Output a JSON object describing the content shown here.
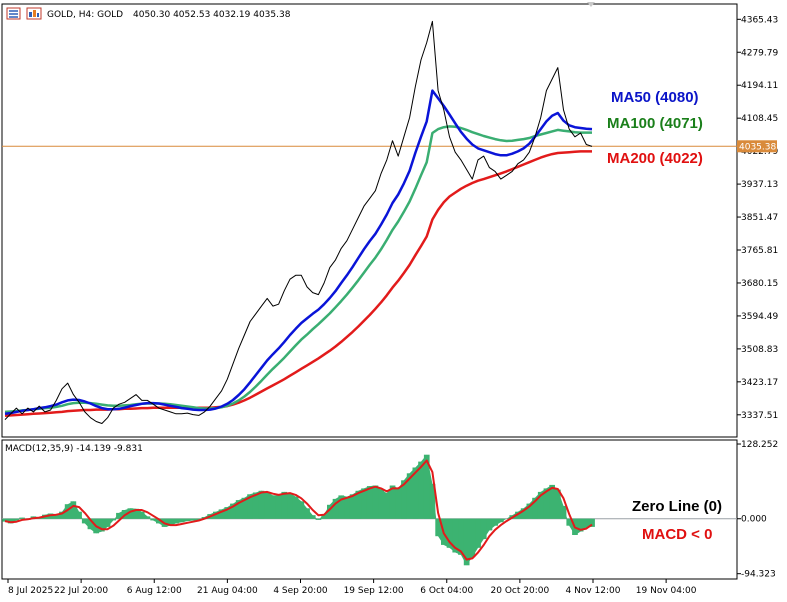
{
  "window": {
    "symbol_header": "GOLD, H4:  GOLD",
    "ohlc": "4050.30 4052.53 4032.19 4035.38",
    "macd_header": "MACD(12,35,9) -14.139 -9.831",
    "current_price_label": "4035.38"
  },
  "annotations": {
    "ma50": "MA50 (4080)",
    "ma100": "MA100 (4071)",
    "ma200": "MA200 (4022)",
    "zero_line": "Zero Line (0)",
    "macd_lt0": "MACD < 0"
  },
  "colors": {
    "price": "#000000",
    "ma50": "#0a14d8",
    "ma100": "#3aae72",
    "ma200": "#e21b1b",
    "histogram": "#3cb371",
    "signal": "#e21b1b",
    "price_line": "#d98a3a",
    "zero_line": "#9aa0a6",
    "ann_ma50": "#0a14c8",
    "ann_ma100": "#1a7f1a",
    "ann_ma200": "#e01010",
    "ann_macd": "#e01010",
    "ann_zero": "#000000"
  },
  "chart_data": [
    {
      "type": "line",
      "panel": "price",
      "ylim": [
        3285,
        4400
      ],
      "current_price": 4035.38,
      "y_ticks": [
        "4365.43",
        "4279.79",
        "4194.11",
        "4108.45",
        "4022.79",
        "3937.13",
        "3851.47",
        "3765.81",
        "3680.15",
        "3594.49",
        "3508.83",
        "3423.17",
        "3337.51"
      ],
      "x_ticks": [
        "8 Jul 2025",
        "22 Jul 20:00",
        "6 Aug 12:00",
        "21 Aug 04:00",
        "4 Sep 20:00",
        "19 Sep 12:00",
        "6 Oct 04:00",
        "20 Oct 20:00",
        "4 Nov 12:00",
        "19 Nov 04:00"
      ],
      "x_tick_index": [
        0,
        12.5,
        25,
        37.5,
        50,
        62.5,
        75,
        87.5,
        100,
        112.5
      ],
      "series": [
        {
          "key": "price",
          "values": [
            3325,
            3340,
            3355,
            3340,
            3355,
            3345,
            3360,
            3345,
            3350,
            3375,
            3405,
            3420,
            3390,
            3370,
            3345,
            3330,
            3320,
            3315,
            3330,
            3355,
            3365,
            3370,
            3380,
            3390,
            3375,
            3375,
            3365,
            3355,
            3350,
            3345,
            3340,
            3340,
            3342,
            3338,
            3336,
            3345,
            3360,
            3380,
            3400,
            3430,
            3470,
            3510,
            3545,
            3580,
            3600,
            3620,
            3640,
            3620,
            3625,
            3660,
            3690,
            3700,
            3700,
            3670,
            3655,
            3650,
            3680,
            3720,
            3740,
            3770,
            3790,
            3820,
            3850,
            3880,
            3900,
            3920,
            3965,
            4000,
            4050,
            4010,
            4060,
            4110,
            4190,
            4260,
            4305,
            4360,
            4180,
            4130,
            4060,
            4020,
            4000,
            3975,
            3950,
            4000,
            4010,
            3980,
            3970,
            3950,
            3960,
            3970,
            3990,
            4000,
            4020,
            4060,
            4110,
            4180,
            4210,
            4240,
            4130,
            4080,
            4060,
            4070,
            4040,
            4035
          ]
        },
        {
          "key": "ma50",
          "values": [
            3340,
            3342,
            3345,
            3348,
            3350,
            3352,
            3355,
            3357,
            3360,
            3364,
            3370,
            3375,
            3377,
            3376,
            3372,
            3367,
            3360,
            3355,
            3352,
            3352,
            3353,
            3356,
            3360,
            3363,
            3366,
            3368,
            3368,
            3367,
            3364,
            3361,
            3358,
            3355,
            3353,
            3351,
            3350,
            3350,
            3351,
            3354,
            3359,
            3366,
            3376,
            3389,
            3404,
            3422,
            3441,
            3460,
            3479,
            3495,
            3510,
            3527,
            3545,
            3561,
            3576,
            3588,
            3600,
            3611,
            3625,
            3641,
            3659,
            3680,
            3700,
            3722,
            3745,
            3768,
            3789,
            3808,
            3832,
            3858,
            3888,
            3910,
            3939,
            3972,
            4018,
            4060,
            4100,
            4180,
            4160,
            4140,
            4118,
            4095,
            4073,
            4055,
            4040,
            4030,
            4025,
            4020,
            4015,
            4012,
            4012,
            4016,
            4022,
            4030,
            4042,
            4060,
            4080,
            4100,
            4115,
            4122,
            4102,
            4090,
            4085,
            4083,
            4081,
            4080
          ]
        },
        {
          "key": "ma100",
          "values": [
            3345,
            3346,
            3347,
            3349,
            3350,
            3352,
            3353,
            3355,
            3356,
            3358,
            3361,
            3365,
            3368,
            3369,
            3369,
            3368,
            3366,
            3364,
            3362,
            3361,
            3361,
            3362,
            3363,
            3365,
            3366,
            3367,
            3367,
            3367,
            3366,
            3365,
            3363,
            3361,
            3359,
            3357,
            3355,
            3354,
            3354,
            3355,
            3357,
            3361,
            3367,
            3375,
            3385,
            3397,
            3411,
            3426,
            3442,
            3457,
            3471,
            3486,
            3502,
            3518,
            3533,
            3546,
            3560,
            3573,
            3587,
            3601,
            3617,
            3633,
            3650,
            3668,
            3687,
            3707,
            3727,
            3746,
            3768,
            3792,
            3818,
            3840,
            3865,
            3892,
            3925,
            3960,
            3994,
            4070,
            4080,
            4085,
            4087,
            4086,
            4083,
            4078,
            4072,
            4067,
            4062,
            4058,
            4054,
            4051,
            4049,
            4050,
            4052,
            4054,
            4057,
            4062,
            4066,
            4070,
            4074,
            4078,
            4076,
            4074,
            4072,
            4071,
            4071,
            4071
          ]
        },
        {
          "key": "ma200",
          "values": [
            3335,
            3336,
            3337,
            3338,
            3339,
            3340,
            3341,
            3342,
            3343,
            3344,
            3345,
            3347,
            3348,
            3349,
            3350,
            3350,
            3351,
            3351,
            3351,
            3352,
            3352,
            3353,
            3353,
            3354,
            3355,
            3355,
            3356,
            3356,
            3356,
            3356,
            3356,
            3356,
            3356,
            3356,
            3356,
            3356,
            3356,
            3357,
            3358,
            3360,
            3364,
            3369,
            3375,
            3382,
            3390,
            3398,
            3406,
            3414,
            3422,
            3430,
            3439,
            3448,
            3457,
            3466,
            3475,
            3484,
            3494,
            3504,
            3515,
            3527,
            3540,
            3553,
            3567,
            3582,
            3597,
            3613,
            3630,
            3648,
            3668,
            3686,
            3706,
            3727,
            3752,
            3776,
            3801,
            3845,
            3870,
            3890,
            3905,
            3915,
            3925,
            3933,
            3940,
            3946,
            3950,
            3955,
            3960,
            3965,
            3970,
            3976,
            3982,
            3988,
            3994,
            4000,
            4006,
            4011,
            4015,
            4018,
            4019,
            4020,
            4021,
            4022,
            4022,
            4022
          ]
        }
      ]
    },
    {
      "type": "bar",
      "panel": "macd",
      "ylim": [
        -100,
        130
      ],
      "y_ticks": [
        "128.252",
        "0.000",
        "-94.323"
      ],
      "series": [
        {
          "key": "histogram",
          "values": [
            -5,
            -8,
            -3,
            2,
            -2,
            4,
            2,
            7,
            9,
            5,
            12,
            25,
            30,
            12,
            -8,
            -18,
            -25,
            -22,
            -14,
            -3,
            10,
            15,
            18,
            17,
            12,
            4,
            -3,
            -8,
            -14,
            -12,
            -8,
            -6,
            -4,
            -3,
            -2,
            3,
            8,
            12,
            16,
            20,
            26,
            32,
            36,
            42,
            45,
            48,
            46,
            40,
            40,
            46,
            44,
            38,
            30,
            18,
            6,
            -2,
            8,
            24,
            34,
            40,
            38,
            42,
            48,
            52,
            56,
            57,
            50,
            44,
            57,
            52,
            66,
            78,
            88,
            98,
            110,
            60,
            -30,
            -45,
            -50,
            -58,
            -62,
            -80,
            -66,
            -50,
            -35,
            -20,
            -12,
            -6,
            0,
            6,
            12,
            18,
            26,
            36,
            46,
            52,
            58,
            50,
            22,
            -12,
            -28,
            -22,
            -15,
            -14
          ]
        },
        {
          "key": "signal",
          "values": [
            -4,
            -6,
            -5,
            -2,
            -1,
            1,
            2,
            4,
            6,
            7,
            9,
            15,
            22,
            20,
            10,
            -2,
            -13,
            -18,
            -18,
            -12,
            -3,
            6,
            12,
            15,
            15,
            11,
            5,
            -1,
            -8,
            -11,
            -11,
            -9,
            -7,
            -5,
            -3,
            0,
            4,
            8,
            12,
            16,
            21,
            27,
            32,
            37,
            41,
            45,
            46,
            43,
            41,
            43,
            44,
            41,
            35,
            26,
            15,
            6,
            7,
            16,
            26,
            33,
            36,
            39,
            44,
            48,
            52,
            55,
            52,
            47,
            52,
            52,
            59,
            69,
            79,
            89,
            100,
            80,
            10,
            -25,
            -40,
            -50,
            -56,
            -70,
            -68,
            -58,
            -45,
            -30,
            -19,
            -11,
            -4,
            2,
            8,
            14,
            21,
            30,
            40,
            47,
            53,
            51,
            35,
            8,
            -15,
            -19,
            -17,
            -10
          ]
        }
      ]
    }
  ]
}
